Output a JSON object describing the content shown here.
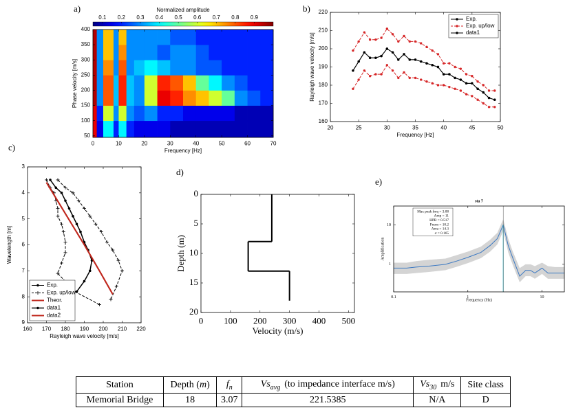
{
  "chart_data": [
    {
      "label": "a)",
      "type": "heatmap",
      "colorbar_label": "Normalized amplitude",
      "clim": [
        0.05,
        1
      ],
      "cticks": [
        0.1,
        0.2,
        0.3,
        0.4,
        0.5,
        0.6,
        0.7,
        0.8,
        0.9
      ],
      "xlabel": "Frequency [Hz]",
      "ylabel": "Phase velocity [m/s]",
      "xlim": [
        0,
        70
      ],
      "ylim": [
        45,
        400
      ],
      "xticks": [
        0,
        10,
        20,
        30,
        40,
        50,
        60,
        70
      ],
      "yticks": [
        50,
        100,
        150,
        200,
        250,
        300,
        350,
        400
      ],
      "xbins": [
        0,
        1.5,
        4,
        8,
        10,
        13,
        16,
        20,
        25,
        30,
        35,
        40,
        45,
        50,
        55,
        60,
        65,
        70
      ],
      "ybins": [
        45,
        100,
        150,
        200,
        250,
        300,
        350,
        400
      ],
      "z": [
        [
          0.9,
          0.15,
          0.4,
          0.2,
          0.4,
          0.2,
          0.15,
          0.15,
          0.15,
          0.1,
          0.1,
          0.1,
          0.1,
          0.1,
          0.1,
          0.1,
          0.1
        ],
        [
          0.9,
          0.2,
          0.6,
          0.3,
          0.6,
          0.3,
          0.25,
          0.3,
          0.2,
          0.2,
          0.15,
          0.15,
          0.15,
          0.15,
          0.1,
          0.1,
          0.1
        ],
        [
          0.95,
          0.3,
          0.8,
          0.35,
          0.85,
          0.35,
          0.3,
          0.6,
          0.9,
          0.85,
          0.75,
          0.7,
          0.6,
          0.5,
          0.3,
          0.25,
          0.2
        ],
        [
          0.95,
          0.3,
          0.8,
          0.35,
          0.85,
          0.35,
          0.3,
          0.6,
          0.85,
          0.8,
          0.7,
          0.5,
          0.4,
          0.3,
          0.25,
          0.2,
          0.2
        ],
        [
          0.95,
          0.3,
          0.75,
          0.3,
          0.8,
          0.3,
          0.35,
          0.4,
          0.35,
          0.3,
          0.3,
          0.25,
          0.25,
          0.2,
          0.2,
          0.2,
          0.2
        ],
        [
          0.95,
          0.3,
          0.7,
          0.3,
          0.75,
          0.3,
          0.3,
          0.3,
          0.25,
          0.3,
          0.3,
          0.25,
          0.2,
          0.2,
          0.2,
          0.2,
          0.2
        ],
        [
          0.95,
          0.3,
          0.7,
          0.3,
          0.7,
          0.3,
          0.3,
          0.3,
          0.3,
          0.25,
          0.25,
          0.2,
          0.2,
          0.2,
          0.2,
          0.2,
          0.2
        ]
      ]
    },
    {
      "label": "b)",
      "type": "line",
      "xlabel": "Frequency [Hz]",
      "ylabel": "Rayleigh wave velocity [m/s]",
      "xlim": [
        20,
        50
      ],
      "ylim": [
        160,
        220
      ],
      "xticks": [
        20,
        25,
        30,
        35,
        40,
        45,
        50
      ],
      "yticks": [
        160,
        170,
        180,
        190,
        200,
        210,
        220
      ],
      "legend": "upper right",
      "x": [
        24,
        25,
        26,
        27,
        28,
        29,
        30,
        31,
        32,
        33,
        34,
        35,
        36,
        37,
        38,
        39,
        40,
        41,
        42,
        43,
        44,
        45,
        46,
        47,
        48,
        49
      ],
      "series": [
        {
          "name": "Exp.",
          "color": "#000000",
          "marker": "dot",
          "values": [
            188,
            193,
            198,
            195,
            195,
            196,
            200,
            198,
            194,
            197,
            194,
            194,
            193,
            192,
            191,
            190,
            186,
            186,
            184,
            183,
            181,
            181,
            178,
            176,
            173,
            172
          ]
        },
        {
          "name": "Exp. up/low",
          "color": "#d62728",
          "marker": "dot",
          "dash": true,
          "upper": [
            199,
            204,
            209,
            205,
            205,
            206,
            211,
            208,
            204,
            207,
            204,
            204,
            203,
            201,
            199,
            197,
            192,
            192,
            190,
            189,
            186,
            185,
            182,
            180,
            177,
            177
          ],
          "lower": [
            178,
            183,
            188,
            185,
            186,
            186,
            191,
            188,
            184,
            187,
            184,
            184,
            183,
            182,
            181,
            180,
            180,
            179,
            178,
            177,
            175,
            174,
            172,
            170,
            168,
            168
          ]
        },
        {
          "name": "data1",
          "color": "#000000",
          "marker": "dot",
          "values": [
            188,
            193,
            198,
            195,
            195,
            196,
            200,
            198,
            194,
            197,
            194,
            194,
            193,
            192,
            191,
            190,
            186,
            186,
            184,
            183,
            181,
            181,
            178,
            176,
            173,
            172
          ]
        }
      ]
    },
    {
      "label": "c)",
      "type": "line",
      "xlabel": "Rayleigh wave velocity [m/s]",
      "ylabel": "Wavelength [m]",
      "xlim": [
        160,
        220
      ],
      "ylim": [
        3,
        9
      ],
      "y_inverted": true,
      "xticks": [
        160,
        170,
        180,
        190,
        200,
        210,
        220
      ],
      "yticks": [
        3,
        4,
        5,
        6,
        7,
        8,
        9
      ],
      "legend": "lower left",
      "series": [
        {
          "name": "Exp.",
          "color": "#000000",
          "marker": "dot",
          "x": [
            172,
            175,
            178,
            180,
            182,
            184,
            186,
            188,
            190,
            192,
            194,
            193,
            190,
            186
          ],
          "y": [
            3.5,
            3.8,
            4.0,
            4.3,
            4.6,
            4.9,
            5.2,
            5.5,
            5.9,
            6.2,
            6.6,
            7.0,
            7.4,
            7.8
          ]
        },
        {
          "name": "Exp. up/low",
          "color": "#000000",
          "marker": "plus",
          "dash": true,
          "upper": {
            "x": [
              176,
              180,
              184,
              187,
              190,
              193,
              196,
              199,
              202,
              205,
              208,
              210,
              207,
              204
            ],
            "y": [
              3.5,
              3.8,
              4.0,
              4.3,
              4.6,
              4.9,
              5.2,
              5.5,
              5.9,
              6.2,
              6.6,
              7.0,
              7.6,
              8.1
            ]
          },
          "lower": {
            "x": [
              170,
              172,
              174,
              175,
              176,
              176,
              178,
              179,
              180,
              180,
              178,
              176,
              185,
              198
            ],
            "y": [
              3.5,
              3.8,
              4.0,
              4.3,
              4.6,
              4.9,
              5.2,
              5.5,
              5.9,
              6.3,
              6.7,
              7.1,
              7.8,
              8.3
            ]
          }
        },
        {
          "name": "Theor.",
          "color": "#c0281e",
          "marker": "none",
          "line_width": 2,
          "x": [
            170,
            180,
            190,
            198,
            205
          ],
          "y": [
            3.6,
            4.8,
            6.0,
            7.0,
            7.9
          ]
        },
        {
          "name": "data1",
          "color": "#000000",
          "marker": "dot",
          "line_width": 1.5,
          "x": [
            172,
            175,
            178,
            180,
            182,
            184,
            186,
            188,
            190,
            192,
            194,
            193,
            190,
            186
          ],
          "y": [
            3.5,
            3.8,
            4.0,
            4.3,
            4.6,
            4.9,
            5.2,
            5.5,
            5.9,
            6.2,
            6.6,
            7.0,
            7.4,
            7.8
          ]
        },
        {
          "name": "data2",
          "color": "#c0281e",
          "marker": "none",
          "line_width": 2,
          "x": [
            170,
            180,
            190,
            198,
            205
          ],
          "y": [
            3.6,
            4.8,
            6.0,
            7.0,
            7.9
          ]
        }
      ]
    },
    {
      "label": "d)",
      "type": "profile",
      "xlabel": "Velocity (m/s)",
      "ylabel": "Depth (m)",
      "xlim": [
        0,
        520
      ],
      "ylim": [
        0,
        20
      ],
      "y_inverted": true,
      "xticks": [
        0,
        100,
        200,
        300,
        400,
        500
      ],
      "yticks": [
        0,
        5,
        10,
        15,
        20
      ],
      "depths": [
        0,
        8,
        13,
        18
      ],
      "values": [
        240,
        160,
        300
      ],
      "color": "#000000"
    },
    {
      "label": "e)",
      "type": "line",
      "title": "sta 7",
      "xlabel": "Frequency (Hz)",
      "ylabel": "Amplification",
      "xlog": true,
      "ylog": true,
      "xlim": [
        0.1,
        20
      ],
      "ylim": [
        0.2,
        30
      ],
      "xticks": [
        0.1,
        1,
        10
      ],
      "yticks": [
        1,
        10
      ],
      "annotations": [
        "Max peak freq = 3.08",
        "Amp = 11",
        "HPB = 0.517",
        "Fnom = 10.2",
        "Area = 14.3",
        "σ = 0.165"
      ],
      "peak_line_color": "#19c3d8",
      "x": [
        0.1,
        0.15,
        0.2,
        0.3,
        0.5,
        0.7,
        1,
        1.5,
        2,
        2.5,
        3,
        3.5,
        4,
        5,
        6,
        7,
        8,
        10,
        12,
        15,
        20
      ],
      "series": [
        {
          "color": "#3a78c2",
          "band": true,
          "band_color": "#d4d4d4",
          "marker": "none",
          "values": [
            0.8,
            0.8,
            0.85,
            0.9,
            1.0,
            1.2,
            1.5,
            2.0,
            3.0,
            4.5,
            10,
            3,
            1.5,
            0.5,
            0.7,
            0.7,
            0.6,
            0.8,
            0.6,
            0.6,
            0.6
          ],
          "upper": [
            1.1,
            1.1,
            1.2,
            1.3,
            1.4,
            1.7,
            2.1,
            2.8,
            4.2,
            6.3,
            14,
            4.5,
            2.2,
            0.8,
            1.0,
            1.0,
            0.9,
            1.1,
            0.9,
            0.85,
            0.85
          ],
          "lower": [
            0.57,
            0.57,
            0.6,
            0.64,
            0.71,
            0.86,
            1.07,
            1.43,
            2.1,
            3.2,
            7,
            2,
            1.0,
            0.35,
            0.5,
            0.5,
            0.43,
            0.57,
            0.43,
            0.43,
            0.43
          ]
        }
      ]
    }
  ],
  "table": {
    "header": [
      [
        "Station"
      ],
      [
        "Depth (",
        "m",
        ")"
      ],
      [
        "f",
        "n"
      ],
      [
        "Vs",
        "avg",
        "(to impedance interface m/s)"
      ],
      [
        "Vs",
        "30",
        "m/s"
      ],
      [
        "Site class"
      ]
    ],
    "rows": [
      [
        "Memorial Bridge",
        "18",
        "3.07",
        "221.5385",
        "N/A",
        "D"
      ]
    ]
  }
}
